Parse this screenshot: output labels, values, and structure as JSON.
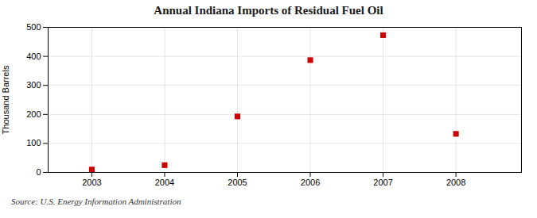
{
  "chart_data": {
    "type": "scatter",
    "title": "Annual Indiana Imports of Residual Fuel Oil",
    "ylabel": "Thousand Barrels",
    "annotations": [
      "Source: U.S. Energy Information Administration"
    ],
    "x": [
      2003,
      2004,
      2005,
      2006,
      2007,
      2008
    ],
    "values": [
      10,
      25,
      193,
      387,
      473,
      133
    ],
    "color": "#cc0000",
    "marker": "square",
    "xlim": [
      2002.4,
      2008.9
    ],
    "xticks": [
      2003,
      2004,
      2005,
      2006,
      2007,
      2008
    ],
    "ylim": [
      0,
      500
    ],
    "yticks": [
      0,
      100,
      200,
      300,
      400,
      500
    ],
    "grid": true
  }
}
